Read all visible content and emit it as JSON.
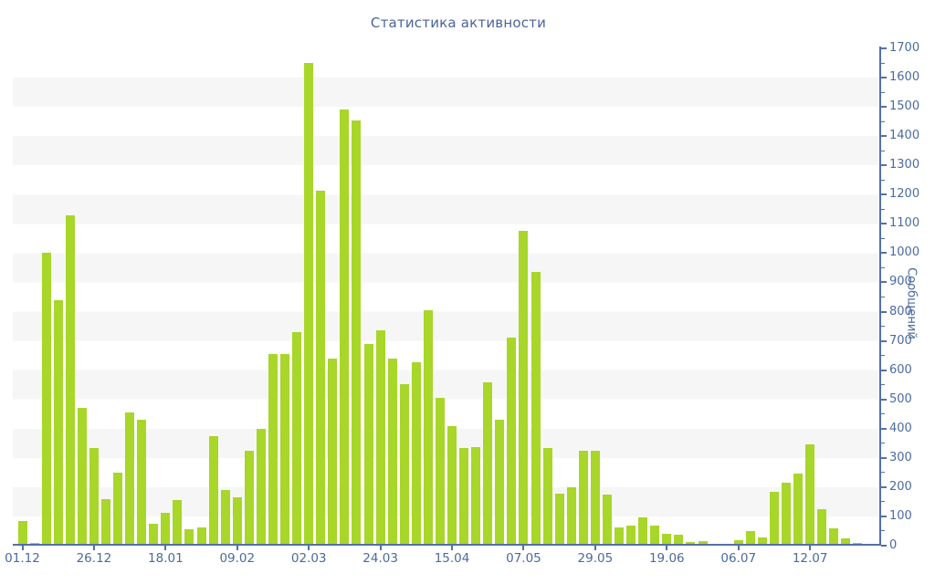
{
  "title": "Статистика активности",
  "chart_data": {
    "type": "bar",
    "title": "Статистика активности",
    "xlabel": "",
    "ylabel": "Сообщений",
    "ylim": [
      0,
      1700
    ],
    "y_tick_step": 100,
    "y_minor_tick_step": 50,
    "grid": "alternating horizontal bands every 100 units",
    "legend_position": "none",
    "bar_color": "#a8d629",
    "band_color": "#f6f6f7",
    "axis_color": "#5470a8",
    "tick_label_color": "#4a6b9e",
    "title_color": "#4a649b",
    "x_label_every_n_bars": 6,
    "x_tick_labels": [
      "01.12",
      "26.12",
      "18.01",
      "09.02",
      "02.03",
      "24.03",
      "15.04",
      "07.05",
      "29.05",
      "19.06",
      "06.07",
      "12.07"
    ],
    "values": [
      85,
      10,
      1000,
      840,
      1130,
      470,
      335,
      160,
      250,
      455,
      430,
      75,
      112,
      155,
      56,
      62,
      374,
      190,
      166,
      324,
      400,
      655,
      655,
      730,
      1650,
      1215,
      640,
      1490,
      1455,
      690,
      735,
      640,
      552,
      628,
      805,
      505,
      410,
      335,
      338,
      557,
      430,
      710,
      1075,
      935,
      335,
      178,
      200,
      325,
      325,
      175,
      61,
      70,
      97,
      70,
      40,
      37,
      14,
      17,
      3,
      4,
      18,
      49,
      29,
      185,
      216,
      247,
      345,
      125,
      58,
      25,
      10,
      5
    ]
  }
}
